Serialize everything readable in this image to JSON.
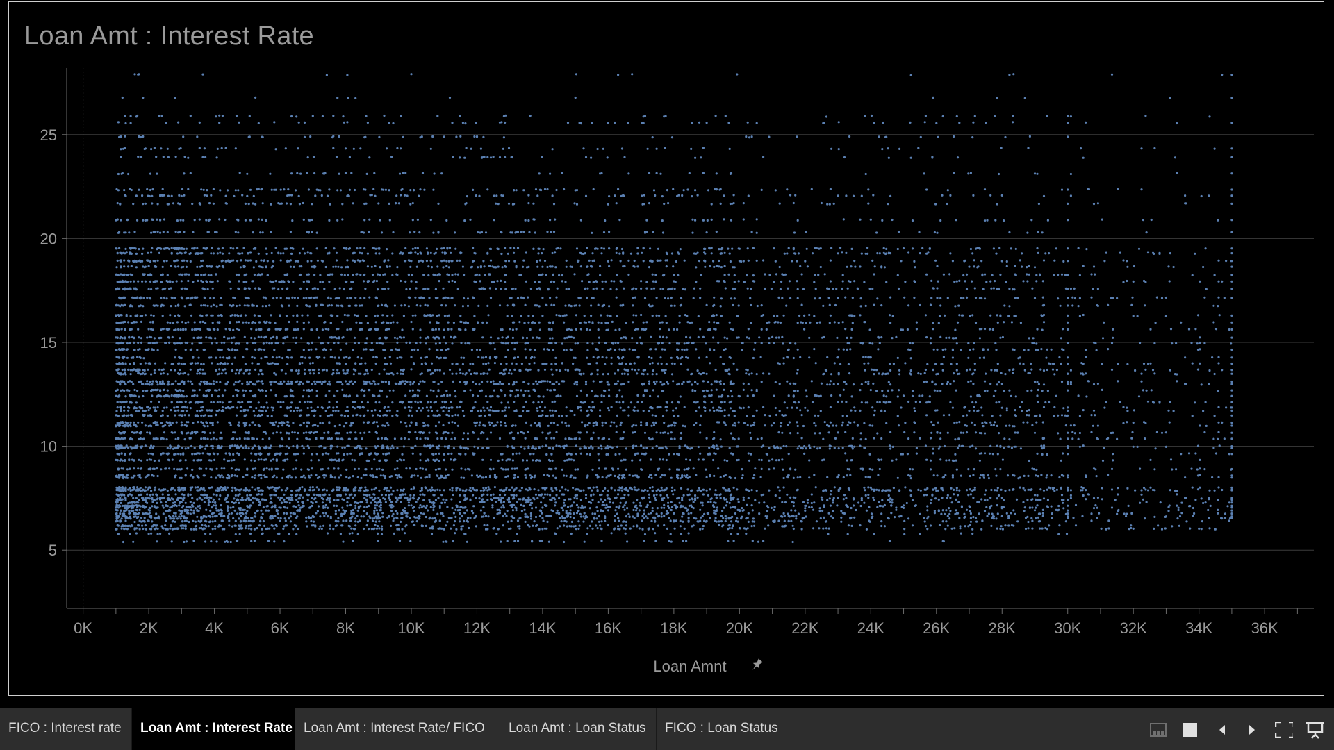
{
  "tabs": [
    {
      "label": "FICO : Interest rate",
      "active": false
    },
    {
      "label": "Loan Amt : Interest Rate",
      "active": true
    },
    {
      "label": "Loan Amt : Interest Rate/ FICO",
      "active": false
    },
    {
      "label": "Loan Amt : Loan Status",
      "active": false
    },
    {
      "label": "FICO : Loan Status",
      "active": false
    }
  ],
  "toolbar": {
    "icons": [
      "thumbnail-view-icon",
      "single-view-icon",
      "previous-icon",
      "next-icon",
      "fullscreen-icon",
      "presentation-icon"
    ]
  },
  "chart_data": {
    "type": "scatter",
    "title": "Loan Amt : Interest Rate",
    "xlabel": "Loan Amnt",
    "ylabel": "",
    "xlim": [
      -500,
      37500
    ],
    "ylim": [
      2.2,
      28.2
    ],
    "x_ticks": [
      0,
      2000,
      4000,
      6000,
      8000,
      10000,
      12000,
      14000,
      16000,
      18000,
      20000,
      22000,
      24000,
      26000,
      28000,
      30000,
      32000,
      34000,
      36000
    ],
    "x_tick_labels": [
      "0K",
      "2K",
      "4K",
      "6K",
      "8K",
      "10K",
      "12K",
      "14K",
      "16K",
      "18K",
      "20K",
      "22K",
      "24K",
      "26K",
      "28K",
      "30K",
      "32K",
      "34K",
      "36K"
    ],
    "y_ticks": [
      5,
      10,
      15,
      20,
      25
    ],
    "y_tick_labels": [
      "5",
      "10",
      "15",
      "20",
      "25"
    ],
    "grid": "horizontal",
    "marker_color": "#5b80b2",
    "x_range_of_points": [
      1000,
      35000
    ],
    "y_range_of_points": [
      5.4,
      27.9
    ],
    "rate_levels": [
      5.42,
      5.79,
      6.03,
      6.17,
      6.39,
      6.54,
      6.62,
      6.76,
      6.91,
      7.05,
      7.14,
      7.29,
      7.43,
      7.51,
      7.66,
      7.88,
      7.9,
      8.0,
      8.49,
      8.59,
      8.9,
      9.33,
      9.63,
      9.91,
      10.0,
      10.36,
      10.65,
      10.99,
      11.14,
      11.48,
      11.71,
      11.86,
      12.12,
      12.42,
      12.69,
      12.99,
      13.11,
      13.49,
      13.67,
      13.98,
      14.27,
      14.65,
      14.96,
      15.23,
      15.62,
      15.96,
      16.29,
      16.77,
      17.14,
      17.58,
      17.93,
      18.25,
      18.64,
      18.92,
      19.29,
      19.52,
      20.3,
      20.89,
      21.67,
      22.06,
      22.35,
      23.13,
      23.91,
      24.33,
      24.89,
      25.57,
      25.89,
      26.77,
      27.88
    ],
    "density": "points are densest at loan amounts 1K-20K and interest rates 6-19; sparse above 22; few points beyond 30K except lines at 35K"
  }
}
